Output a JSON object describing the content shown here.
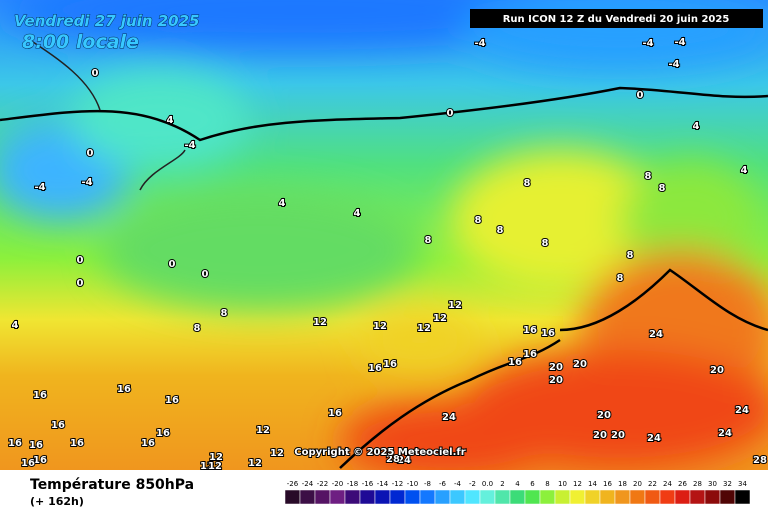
{
  "header": {
    "date": "Vendredi 27 juin 2025",
    "time": "8:00 locale",
    "run": "Run ICON 12 Z du Vendredi 20 juin 2025"
  },
  "footer": {
    "title": "Température 850hPa",
    "subtitle": "(+ 162h)",
    "copyright": "Copyright © 2025 Meteociel.fr"
  },
  "legend": {
    "ticks": [
      -26,
      -24,
      -22,
      -20,
      -18,
      -16,
      -14,
      -12,
      -10,
      -8,
      -6,
      -4,
      -2,
      {
        "value": 0,
        "label": "0.0"
      },
      2,
      4,
      6,
      8,
      10,
      12,
      14,
      16,
      18,
      20,
      22,
      24,
      26,
      28,
      30,
      32,
      34
    ],
    "colors": [
      "#280a28",
      "#3c0f46",
      "#551464",
      "#6e1e82",
      "#3c0a78",
      "#1e0a96",
      "#0a14b4",
      "#0028d2",
      "#0050f0",
      "#1478ff",
      "#28a0ff",
      "#3cc8ff",
      "#50e6ff",
      "#64f0dc",
      "#50e6aa",
      "#3cdc78",
      "#50e650",
      "#8cf03c",
      "#c8f032",
      "#f0f032",
      "#f0d228",
      "#f0b41e",
      "#f0961e",
      "#f07814",
      "#f05a14",
      "#f03c14",
      "#dc1e14",
      "#b41414",
      "#8c0a0a",
      "#500505",
      "#000000"
    ]
  },
  "map_labels": [
    -4,
    -4,
    -4,
    -4,
    0,
    0,
    0,
    4,
    -4,
    0,
    -4,
    -4,
    4,
    4,
    8,
    8,
    8,
    4,
    4,
    8,
    8,
    8,
    8,
    8,
    8,
    0,
    0,
    0,
    0,
    4,
    8,
    8,
    12,
    12,
    12,
    12,
    12,
    16,
    16,
    16,
    16,
    16,
    16,
    20,
    20,
    20,
    24,
    20,
    16,
    16,
    16,
    16,
    24,
    20,
    20,
    20,
    24,
    24,
    24,
    16,
    16,
    16,
    16,
    16,
    16,
    12,
    12,
    12,
    12,
    12,
    12,
    16,
    16,
    24,
    28,
    28
  ]
}
